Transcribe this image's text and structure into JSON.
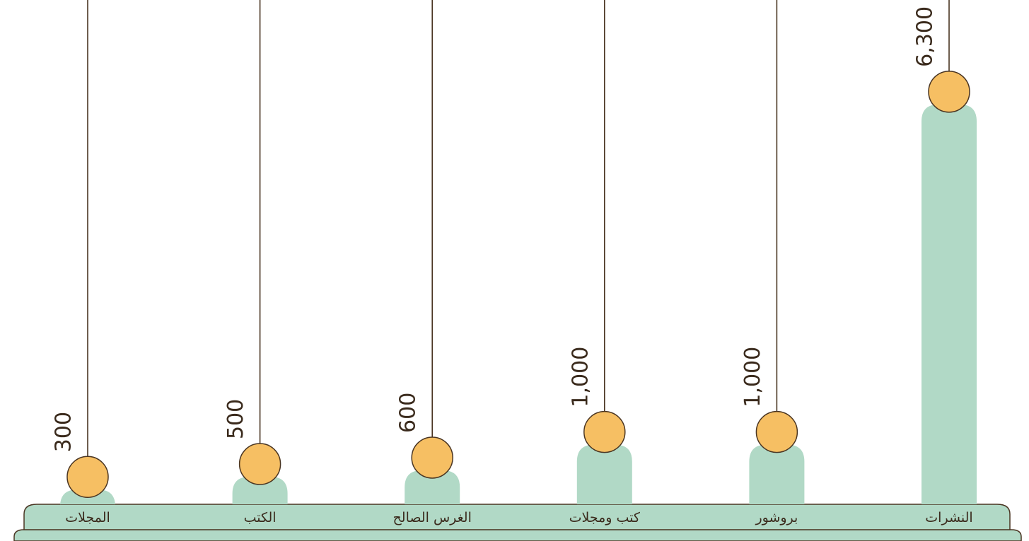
{
  "chart_data": {
    "type": "bar",
    "categories": [
      "المجلات",
      "الكتب",
      "الغرس الصالح",
      "كتب ومجلات",
      "بروشور",
      "النشرات"
    ],
    "values": [
      300,
      500,
      600,
      1000,
      1000,
      6300
    ],
    "value_labels": [
      "300",
      "500",
      "600",
      "1,000",
      "1,000",
      "6,300"
    ],
    "title": "",
    "xlabel": "",
    "ylabel": "",
    "ylim": [
      0,
      6300
    ],
    "grid": false,
    "legend": "none",
    "colors": {
      "bar": "#b1d9c6",
      "bubble": "#f6bf63",
      "line": "#4a3522",
      "text": "#3a2a1c",
      "base": "#b1d9c6"
    }
  }
}
